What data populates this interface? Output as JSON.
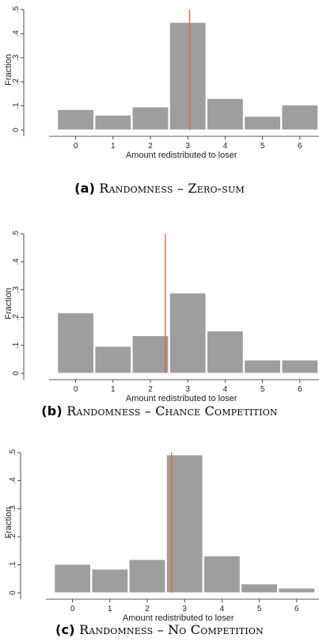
{
  "chart_data": [
    {
      "type": "bar",
      "panel_label": "(a)",
      "caption": "Randomness – Zero-sum",
      "xlabel": "Amount redistributed to loser",
      "ylabel": "Fraction",
      "categories": [
        "0",
        "1",
        "2",
        "3",
        "4",
        "5",
        "6"
      ],
      "x_ticks": [
        "0",
        "1",
        "2",
        "3",
        "4",
        "5",
        "6"
      ],
      "y_ticks": [
        "0",
        ".1",
        ".2",
        ".3",
        ".4",
        ".5"
      ],
      "values": [
        0.085,
        0.062,
        0.096,
        0.447,
        0.131,
        0.057,
        0.104
      ],
      "mean_line": 3.05,
      "ylim": [
        0,
        0.5
      ],
      "bar_color": "#9e9e9e",
      "line_color": "#e8622c"
    },
    {
      "type": "bar",
      "panel_label": "(b)",
      "caption": "Randomness – Chance Competition",
      "xlabel": "Amount redistributed to loser",
      "ylabel": "Fraction",
      "categories": [
        "0",
        "1",
        "2",
        "3",
        "4",
        "5",
        "6"
      ],
      "x_ticks": [
        "0",
        "1",
        "2",
        "3",
        "4",
        "5",
        "6"
      ],
      "y_ticks": [
        "0",
        ".1",
        ".2",
        ".3",
        ".4",
        ".5"
      ],
      "values": [
        0.217,
        0.097,
        0.135,
        0.288,
        0.152,
        0.048,
        0.048
      ],
      "mean_line": 2.4,
      "ylim": [
        0,
        0.5
      ],
      "bar_color": "#9e9e9e",
      "line_color": "#e8622c"
    },
    {
      "type": "bar",
      "panel_label": "(c)",
      "caption": "Randomness – No Competition",
      "xlabel": "Amount redistributed to loser",
      "ylabel": "Fraction",
      "categories": [
        "0",
        "1",
        "2",
        "3",
        "4",
        "5",
        "6"
      ],
      "x_ticks": [
        "0",
        "1",
        "2",
        "3",
        "4",
        "5",
        "6"
      ],
      "y_ticks": [
        "0",
        ".1",
        ".2",
        ".3",
        ".4",
        ".5"
      ],
      "values": [
        0.102,
        0.085,
        0.119,
        0.492,
        0.132,
        0.032,
        0.017
      ],
      "mean_line": 2.65,
      "ylim": [
        0,
        0.5
      ],
      "bar_color": "#9e9e9e",
      "line_color": "#e8622c"
    }
  ]
}
